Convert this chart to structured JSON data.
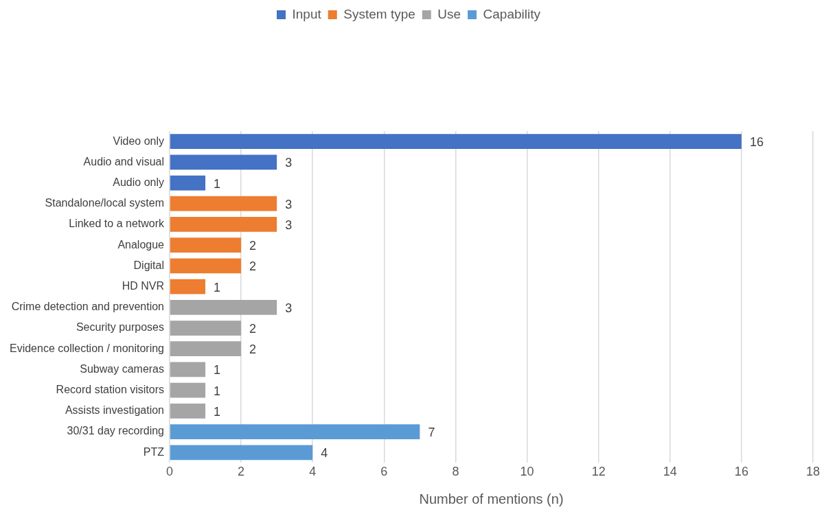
{
  "chart_data": {
    "type": "bar",
    "orientation": "horizontal",
    "xlabel": "Number of mentions (n)",
    "categories": [
      "Video only",
      "Audio and visual",
      "Audio only",
      "Standalone/local system",
      "Linked to a network",
      "Analogue",
      "Digital",
      "HD NVR",
      "Crime detection and prevention",
      "Security purposes",
      "Evidence collection / monitoring",
      "Subway cameras",
      "Record station visitors",
      "Assists investigation",
      "30/31 day recording",
      "PTZ"
    ],
    "series": [
      {
        "name": "Input",
        "color": "#4472c4",
        "values": [
          16,
          3,
          1,
          null,
          null,
          null,
          null,
          null,
          null,
          null,
          null,
          null,
          null,
          null,
          null,
          null
        ]
      },
      {
        "name": "System type",
        "color": "#ed7d31",
        "values": [
          null,
          null,
          null,
          3,
          3,
          2,
          2,
          1,
          null,
          null,
          null,
          null,
          null,
          null,
          null,
          null
        ]
      },
      {
        "name": "Use",
        "color": "#a5a5a5",
        "values": [
          null,
          null,
          null,
          null,
          null,
          null,
          null,
          null,
          3,
          2,
          2,
          1,
          1,
          1,
          null,
          null
        ]
      },
      {
        "name": "Capability",
        "color": "#5b9bd5",
        "values": [
          null,
          null,
          null,
          null,
          null,
          null,
          null,
          null,
          null,
          null,
          null,
          null,
          null,
          null,
          7,
          4
        ]
      }
    ],
    "xlim": [
      0,
      18
    ],
    "xticks": [
      0,
      2,
      4,
      6,
      8,
      10,
      12,
      14,
      16,
      18
    ],
    "grid": "x",
    "legend": "top",
    "data_labels": true
  }
}
